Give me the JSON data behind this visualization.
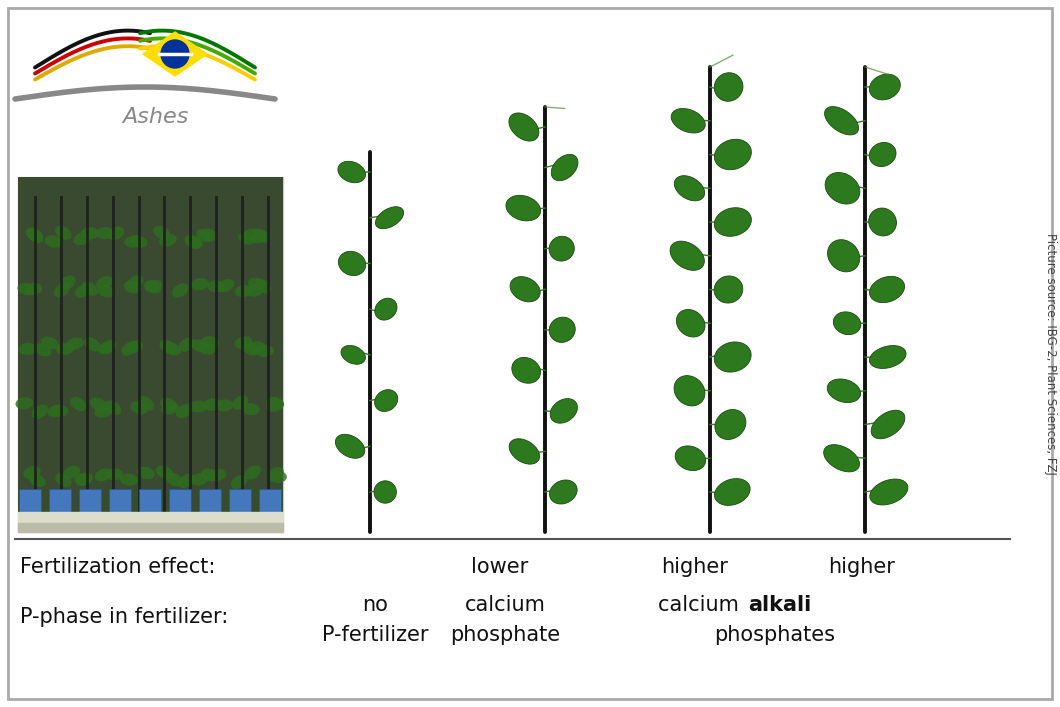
{
  "background_color": "#ffffff",
  "border_color": "#aaaaaa",
  "side_text": "Picture source: IBG-2, Plant Sciences, FZJ",
  "row1_label": "Fertilization effect:",
  "row1_values": [
    "lower",
    "higher",
    "higher"
  ],
  "row2_label": "P-phase in fertilizer:",
  "label_fontsize": 15,
  "value_fontsize": 15,
  "logo_left_colors": [
    "#111111",
    "#cc0000",
    "#ddaa00"
  ],
  "logo_right_colors": [
    "#007700",
    "#44aa00",
    "#ffcc00"
  ],
  "brazil_flag_color": "#ffdd00",
  "brazil_circle_color": "#003399",
  "gray_curve_color": "#888888",
  "ashes_text_color": "#888888",
  "separator_color": "#444444",
  "text_color": "#111111",
  "border_lw": 2.0
}
